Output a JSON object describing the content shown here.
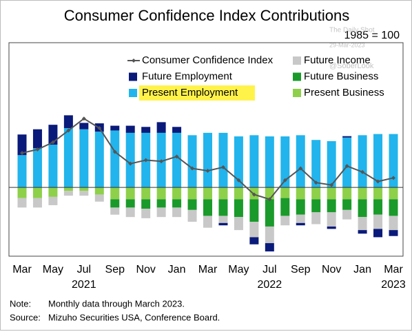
{
  "chart_data": {
    "type": "stacked-bar-line",
    "title": "Consumer Confidence Index Contributions",
    "subtitle": "1985 = 100",
    "watermark": [
      "The Daily Shot",
      "29-Mar-2023",
      "@SoberLook"
    ],
    "categories": [
      "Mar",
      null,
      "May",
      null,
      "Jul",
      null,
      "Sep",
      null,
      "Nov",
      null,
      "Jan",
      null,
      "Mar",
      null,
      "May",
      null,
      "Jul",
      null,
      "Sep",
      null,
      "Nov",
      null,
      "Jan",
      null,
      "Mar"
    ],
    "years": [
      "2021",
      "2022",
      "2023"
    ],
    "ylim": [
      -29,
      61
    ],
    "series": [
      {
        "name": "Present Business",
        "color": "#8ed04a",
        "values": [
          -4.5,
          -4.5,
          -4,
          -1.5,
          -1.5,
          -3,
          -5,
          -5,
          -5,
          -5,
          -5,
          -5,
          -5,
          -5,
          -5,
          -5,
          -5,
          -4.5,
          -5,
          -5,
          -5,
          -5,
          -5,
          -5,
          -5
        ]
      },
      {
        "name": "Present Employment",
        "color": "#22b4ec",
        "values": [
          13.6,
          16.5,
          18,
          25,
          24.5,
          23.5,
          24,
          23,
          23,
          23,
          23,
          22,
          23,
          23,
          21.5,
          22,
          21.5,
          21.5,
          22,
          20,
          19.5,
          21,
          22,
          22.5,
          22.5
        ]
      },
      {
        "name": "Future Business",
        "color": "#1a9a2a",
        "values": [
          0,
          0,
          0,
          0,
          0,
          0,
          -3.5,
          -3.5,
          -4,
          -3.5,
          -3.5,
          -4.5,
          -7,
          -7,
          -7.5,
          -9.5,
          -11.5,
          -7.5,
          -6.5,
          -5.5,
          -5.5,
          -4.5,
          -7.5,
          -6.5,
          -7
        ]
      },
      {
        "name": "Future Income",
        "color": "#c8c8c8",
        "values": [
          -4,
          -4,
          -3.5,
          -2,
          -2,
          -3,
          -3,
          -4,
          -4,
          -4,
          -4,
          -5,
          -5,
          -3,
          -5.5,
          -6.5,
          -7,
          -4,
          -3.5,
          -5,
          -6,
          -4,
          -5.5,
          -6,
          -6
        ]
      },
      {
        "name": "Future Employment",
        "color": "#0a1a7a",
        "values": [
          8.7,
          8,
          8.4,
          5.4,
          2.7,
          3.5,
          2,
          3,
          2.5,
          4.5,
          2.5,
          0,
          0,
          -1,
          0,
          -3,
          -3.5,
          0,
          -1,
          0,
          -1,
          0.6,
          -1.5,
          -3.5,
          -2.5
        ]
      },
      {
        "name": "Consumer Confidence Index",
        "color": "#555555",
        "type": "line",
        "values": [
          14.5,
          16,
          19,
          24,
          29,
          25,
          15,
          10,
          11.5,
          11,
          13,
          8,
          7,
          8.5,
          3,
          -3,
          -5,
          3,
          8,
          2,
          1,
          9,
          6.5,
          2.5,
          4
        ]
      }
    ],
    "notes": [
      [
        "Note:",
        "Monthly data through March 2023."
      ],
      [
        "Source:",
        "Mizuho Securities USA, Conference Board."
      ]
    ]
  }
}
